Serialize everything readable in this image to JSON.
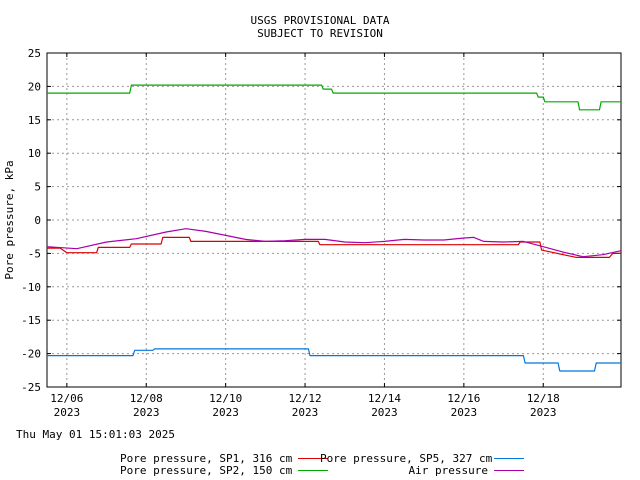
{
  "chart_data": {
    "type": "line",
    "title": [
      "USGS PROVISIONAL DATA",
      "SUBJECT TO REVISION"
    ],
    "ylabel": "Pore pressure, kPa",
    "xlabel": "",
    "ylim": [
      -25,
      25
    ],
    "xlim": [
      "2023-12-05 12:00",
      "2023-12-19 23:00"
    ],
    "yticks": [
      "25",
      "20",
      "15",
      "10",
      "5",
      "0",
      "-5",
      "-10",
      "-15",
      "-20",
      "-25"
    ],
    "xticks": [
      {
        "date": "2023-12-06",
        "label": "12/06",
        "year": "2023"
      },
      {
        "date": "2023-12-08",
        "label": "12/08",
        "year": "2023"
      },
      {
        "date": "2023-12-10",
        "label": "12/10",
        "year": "2023"
      },
      {
        "date": "2023-12-12",
        "label": "12/12",
        "year": "2023"
      },
      {
        "date": "2023-12-14",
        "label": "12/14",
        "year": "2023"
      },
      {
        "date": "2023-12-16",
        "label": "12/16",
        "year": "2023"
      },
      {
        "date": "2023-12-18",
        "label": "12/18",
        "year": "2023"
      }
    ],
    "grid": true,
    "legend_position": "bottom",
    "timestamp": "Thu May 01 15:01:03 2025",
    "series": [
      {
        "name": "Pore pressure, SP1, 316 cm",
        "color": "#dd0000",
        "points": [
          [
            "2023-12-05 12:00",
            -4.2
          ],
          [
            "2023-12-05 20:00",
            -4.2
          ],
          [
            "2023-12-06 00:00",
            -4.9
          ],
          [
            "2023-12-06 18:00",
            -4.9
          ],
          [
            "2023-12-06 19:00",
            -4.1
          ],
          [
            "2023-12-07 14:00",
            -4.1
          ],
          [
            "2023-12-07 15:00",
            -3.6
          ],
          [
            "2023-12-08 09:00",
            -3.6
          ],
          [
            "2023-12-08 10:00",
            -2.6
          ],
          [
            "2023-12-09 02:00",
            -2.6
          ],
          [
            "2023-12-09 03:00",
            -3.2
          ],
          [
            "2023-12-12 08:00",
            -3.2
          ],
          [
            "2023-12-12 09:00",
            -3.7
          ],
          [
            "2023-12-17 09:00",
            -3.7
          ],
          [
            "2023-12-17 10:00",
            -3.3
          ],
          [
            "2023-12-17 22:00",
            -3.3
          ],
          [
            "2023-12-17 23:00",
            -4.5
          ],
          [
            "2023-12-18 20:00",
            -5.6
          ],
          [
            "2023-12-19 16:00",
            -5.6
          ],
          [
            "2023-12-19 18:00",
            -5.0
          ],
          [
            "2023-12-19 23:00",
            -5.0
          ]
        ]
      },
      {
        "name": "Pore pressure, SP5, 327 cm",
        "color": "#0077dd",
        "points": [
          [
            "2023-12-05 12:00",
            -20.3
          ],
          [
            "2023-12-07 16:00",
            -20.3
          ],
          [
            "2023-12-07 17:00",
            -19.5
          ],
          [
            "2023-12-08 04:00",
            -19.5
          ],
          [
            "2023-12-08 05:00",
            -19.3
          ],
          [
            "2023-12-12 02:00",
            -19.3
          ],
          [
            "2023-12-12 03:00",
            -20.3
          ],
          [
            "2023-12-17 12:00",
            -20.3
          ],
          [
            "2023-12-17 13:00",
            -21.4
          ],
          [
            "2023-12-18 09:00",
            -21.4
          ],
          [
            "2023-12-18 10:00",
            -22.6
          ],
          [
            "2023-12-19 07:00",
            -22.6
          ],
          [
            "2023-12-19 08:00",
            -21.4
          ],
          [
            "2023-12-19 23:00",
            -21.4
          ]
        ]
      },
      {
        "name": "Pore pressure, SP2, 150 cm",
        "color": "#00aa00",
        "points": [
          [
            "2023-12-05 12:00",
            19.0
          ],
          [
            "2023-12-07 14:00",
            19.0
          ],
          [
            "2023-12-07 15:00",
            20.2
          ],
          [
            "2023-12-12 10:00",
            20.2
          ],
          [
            "2023-12-12 11:00",
            19.6
          ],
          [
            "2023-12-12 16:00",
            19.6
          ],
          [
            "2023-12-12 17:00",
            19.0
          ],
          [
            "2023-12-17 20:00",
            19.0
          ],
          [
            "2023-12-17 21:00",
            18.4
          ],
          [
            "2023-12-18 00:00",
            18.4
          ],
          [
            "2023-12-18 01:00",
            17.7
          ],
          [
            "2023-12-18 21:00",
            17.7
          ],
          [
            "2023-12-18 22:00",
            16.5
          ],
          [
            "2023-12-19 10:00",
            16.5
          ],
          [
            "2023-12-19 11:00",
            17.7
          ],
          [
            "2023-12-19 23:00",
            17.7
          ]
        ]
      },
      {
        "name": "Air pressure",
        "color": "#aa00aa",
        "points": [
          [
            "2023-12-05 12:00",
            -4.0
          ],
          [
            "2023-12-06 06:00",
            -4.3
          ],
          [
            "2023-12-07 00:00",
            -3.3
          ],
          [
            "2023-12-07 18:00",
            -2.8
          ],
          [
            "2023-12-08 12:00",
            -1.8
          ],
          [
            "2023-12-09 00:00",
            -1.3
          ],
          [
            "2023-12-09 12:00",
            -1.7
          ],
          [
            "2023-12-10 00:00",
            -2.3
          ],
          [
            "2023-12-10 12:00",
            -2.9
          ],
          [
            "2023-12-11 00:00",
            -3.2
          ],
          [
            "2023-12-11 12:00",
            -3.1
          ],
          [
            "2023-12-12 00:00",
            -2.9
          ],
          [
            "2023-12-12 12:00",
            -2.9
          ],
          [
            "2023-12-13 00:00",
            -3.3
          ],
          [
            "2023-12-13 12:00",
            -3.4
          ],
          [
            "2023-12-14 00:00",
            -3.2
          ],
          [
            "2023-12-14 12:00",
            -2.9
          ],
          [
            "2023-12-15 00:00",
            -3.0
          ],
          [
            "2023-12-15 12:00",
            -3.0
          ],
          [
            "2023-12-16 00:00",
            -2.7
          ],
          [
            "2023-12-16 06:00",
            -2.6
          ],
          [
            "2023-12-16 12:00",
            -3.2
          ],
          [
            "2023-12-17 00:00",
            -3.3
          ],
          [
            "2023-12-17 12:00",
            -3.2
          ],
          [
            "2023-12-18 00:00",
            -4.0
          ],
          [
            "2023-12-18 12:00",
            -4.8
          ],
          [
            "2023-12-19 00:00",
            -5.5
          ],
          [
            "2023-12-19 12:00",
            -5.2
          ],
          [
            "2023-12-19 23:00",
            -4.6
          ]
        ]
      }
    ]
  }
}
